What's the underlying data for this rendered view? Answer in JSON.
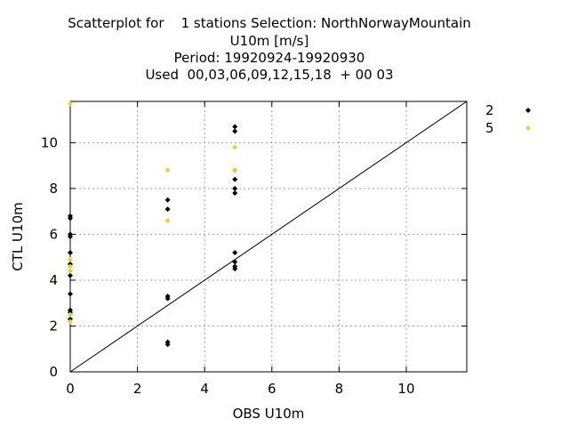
{
  "title": {
    "line1": "Scatterplot for    1 stations Selection: NorthNorwayMountain",
    "line2": "U10m [m/s]",
    "line3": "Period: 19920924-19920930",
    "line4": "Used  00,03,06,09,12,15,18  + 00 03"
  },
  "chart_data": {
    "type": "scatter",
    "title": "Scatterplot for    1 stations Selection: NorthNorwayMountain U10m [m/s] Period: 19920924-19920930 Used  00,03,06,09,12,15,18  + 00 03",
    "xlabel": "OBS U10m",
    "ylabel": "CTL U10m",
    "xlim": [
      0,
      11.8
    ],
    "ylim": [
      0,
      11.8
    ],
    "xticks": [
      0,
      2,
      4,
      6,
      8,
      10
    ],
    "yticks": [
      0,
      2,
      4,
      6,
      8,
      10
    ],
    "xtick_labels": [
      "0",
      "2",
      "4",
      "6",
      "8",
      "10"
    ],
    "ytick_labels": [
      "0",
      "2",
      "4",
      "6",
      "8",
      "10"
    ],
    "grid": true,
    "legend_position": "outside-right",
    "reference_line": "y = x",
    "series": [
      {
        "name": "2",
        "color": "#000000",
        "marker": "diamond",
        "points": [
          [
            0,
            6.8
          ],
          [
            0,
            6.7
          ],
          [
            0,
            6.0
          ],
          [
            0,
            5.9
          ],
          [
            0,
            5.2
          ],
          [
            0,
            4.7
          ],
          [
            0,
            4.2
          ],
          [
            0,
            3.4
          ],
          [
            0,
            2.7
          ],
          [
            0,
            2.6
          ],
          [
            0,
            2.3
          ],
          [
            2.9,
            7.5
          ],
          [
            2.9,
            7.1
          ],
          [
            2.9,
            3.3
          ],
          [
            2.9,
            3.2
          ],
          [
            2.9,
            1.3
          ],
          [
            2.9,
            1.2
          ],
          [
            4.9,
            10.7
          ],
          [
            4.9,
            10.5
          ],
          [
            4.9,
            8.8
          ],
          [
            4.9,
            8.4
          ],
          [
            4.9,
            8.0
          ],
          [
            4.9,
            7.8
          ],
          [
            4.9,
            5.2
          ],
          [
            4.9,
            4.8
          ],
          [
            4.9,
            4.6
          ],
          [
            4.9,
            4.5
          ]
        ]
      },
      {
        "name": "5",
        "color": "#f0d020",
        "marker": "diamond",
        "points": [
          [
            0,
            11.7
          ],
          [
            0,
            4.9
          ],
          [
            0,
            4.6
          ],
          [
            0,
            4.4
          ],
          [
            0,
            2.5
          ],
          [
            0,
            2.2
          ],
          [
            2.9,
            8.8
          ],
          [
            2.9,
            6.6
          ],
          [
            4.9,
            9.8
          ],
          [
            4.9,
            8.8
          ]
        ]
      }
    ]
  }
}
